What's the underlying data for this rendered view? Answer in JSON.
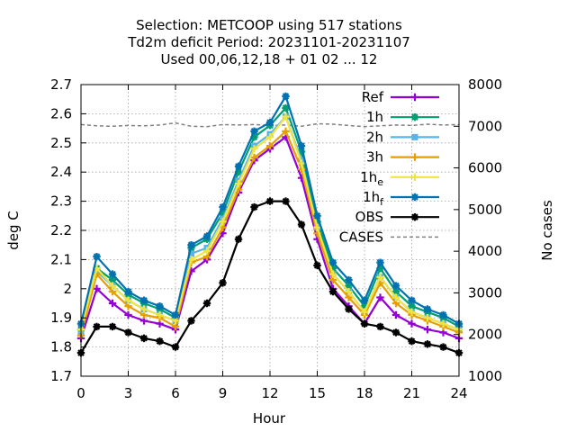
{
  "chart_data": {
    "type": "line",
    "title_lines": [
      "Selection: METCOOP using   517 stations",
      "Td2m deficit   Period: 20231101-20231107",
      "Used  00,06,12,18 + 01 02 ... 12"
    ],
    "xlabel": "Hour",
    "ylabel": "deg C",
    "y2label": "No cases",
    "xlim": [
      0,
      24
    ],
    "ylim": [
      1.7,
      2.7
    ],
    "y2lim": [
      1000,
      8000
    ],
    "xticks": [
      "0",
      "3",
      "6",
      "9",
      "12",
      "15",
      "18",
      "21",
      "24"
    ],
    "yticks": [
      "1.7",
      "1.8",
      "1.9",
      "2",
      "2.1",
      "2.2",
      "2.3",
      "2.4",
      "2.5",
      "2.6",
      "2.7"
    ],
    "y2ticks": [
      "1000",
      "2000",
      "3000",
      "4000",
      "5000",
      "6000",
      "7000",
      "8000"
    ],
    "grid": true,
    "legend_position": "top-right",
    "x": [
      0,
      1,
      2,
      3,
      4,
      5,
      6,
      7,
      8,
      9,
      10,
      11,
      12,
      13,
      14,
      15,
      16,
      17,
      18,
      19,
      20,
      21,
      22,
      23,
      24
    ],
    "series": [
      {
        "name": "Ref",
        "sub": "",
        "color": "#9400d3",
        "marker": "plus",
        "axis": "y1",
        "values": [
          1.83,
          2.0,
          1.95,
          1.91,
          1.89,
          1.88,
          1.86,
          2.06,
          2.1,
          2.19,
          2.33,
          2.44,
          2.48,
          2.52,
          2.38,
          2.17,
          2.0,
          1.94,
          1.88,
          1.97,
          1.91,
          1.88,
          1.86,
          1.85,
          1.83
        ]
      },
      {
        "name": "1h",
        "sub": "",
        "color": "#009e73",
        "marker": "star",
        "axis": "y1",
        "values": [
          1.86,
          2.07,
          2.03,
          1.98,
          1.95,
          1.93,
          1.9,
          2.14,
          2.17,
          2.26,
          2.4,
          2.52,
          2.56,
          2.62,
          2.47,
          2.23,
          2.07,
          2.01,
          1.94,
          2.07,
          1.99,
          1.94,
          1.92,
          1.9,
          1.87
        ]
      },
      {
        "name": "2h",
        "sub": "",
        "color": "#56b4e9",
        "marker": "square",
        "axis": "y1",
        "values": [
          1.85,
          2.06,
          2.01,
          1.96,
          1.93,
          1.91,
          1.89,
          2.12,
          2.14,
          2.24,
          2.37,
          2.49,
          2.53,
          2.59,
          2.44,
          2.21,
          2.05,
          1.99,
          1.92,
          2.04,
          1.97,
          1.92,
          1.9,
          1.88,
          1.86
        ]
      },
      {
        "name": "3h",
        "sub": "",
        "color": "#e69f00",
        "marker": "plus",
        "axis": "y1",
        "values": [
          1.84,
          2.05,
          1.99,
          1.94,
          1.91,
          1.9,
          1.87,
          2.09,
          2.11,
          2.21,
          2.34,
          2.45,
          2.49,
          2.54,
          2.41,
          2.19,
          2.03,
          1.97,
          1.91,
          2.02,
          1.95,
          1.91,
          1.89,
          1.87,
          1.85
        ]
      },
      {
        "name": "1h",
        "sub": "e",
        "color": "#f0e442",
        "marker": "plus",
        "axis": "y1",
        "values": [
          1.86,
          2.07,
          2.01,
          1.96,
          1.93,
          1.91,
          1.89,
          2.1,
          2.13,
          2.23,
          2.36,
          2.48,
          2.52,
          2.59,
          2.43,
          2.21,
          2.05,
          1.99,
          1.92,
          2.04,
          1.97,
          1.92,
          1.9,
          1.88,
          1.86
        ]
      },
      {
        "name": "1h",
        "sub": "f",
        "color": "#0072b2",
        "marker": "star",
        "axis": "y1",
        "values": [
          1.88,
          2.11,
          2.05,
          1.99,
          1.96,
          1.94,
          1.91,
          2.15,
          2.18,
          2.28,
          2.42,
          2.54,
          2.57,
          2.66,
          2.49,
          2.25,
          2.09,
          2.03,
          1.96,
          2.09,
          2.01,
          1.96,
          1.93,
          1.91,
          1.88
        ]
      },
      {
        "name": "OBS",
        "sub": "",
        "color": "#000000",
        "marker": "star",
        "axis": "y1",
        "values": [
          1.78,
          1.87,
          1.87,
          1.85,
          1.83,
          1.82,
          1.8,
          1.89,
          1.95,
          2.02,
          2.17,
          2.28,
          2.3,
          2.3,
          2.22,
          2.08,
          1.99,
          1.93,
          1.88,
          1.87,
          1.85,
          1.82,
          1.81,
          1.8,
          1.78
        ]
      },
      {
        "name": "CASES",
        "sub": "",
        "color": "#808080",
        "marker": "none",
        "axis": "y2",
        "dashed": true,
        "values": [
          7040,
          7010,
          7000,
          7020,
          7010,
          7030,
          7080,
          7000,
          6990,
          7040,
          7030,
          7040,
          7020,
          7030,
          7000,
          7060,
          7050,
          7020,
          6990,
          7010,
          7030,
          7020,
          7050,
          7030,
          7040
        ]
      }
    ]
  }
}
